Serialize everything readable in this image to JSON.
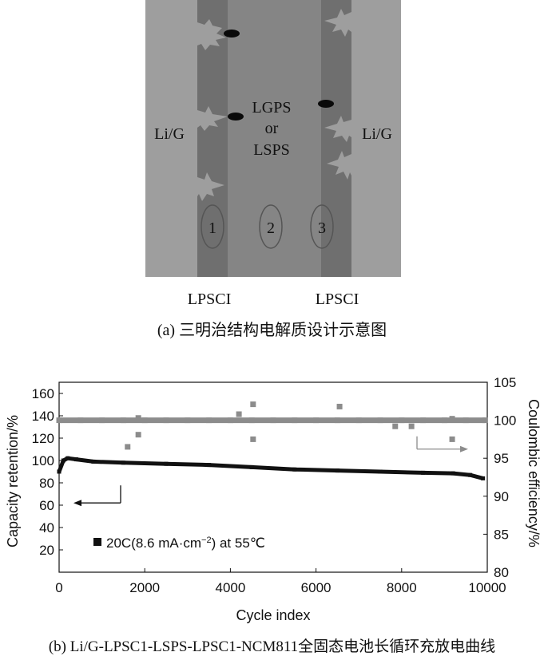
{
  "diagram_a": {
    "left_region_label": "Li/G",
    "right_region_label": "Li/G",
    "center_label": [
      "LGPS",
      "or",
      "LSPS"
    ],
    "bottom_labels": [
      "LPSCI",
      "LPSCI"
    ],
    "interface_markers": [
      "1",
      "2",
      "3"
    ],
    "caption": "(a) 三明治结构电解质设计示意图",
    "colors": {
      "outer": "#9e9e9e",
      "lpsci": "#6f6f6f",
      "center": "#858585"
    }
  },
  "chart_data": {
    "type": "scatter",
    "caption": "(b) Li/G-LPSC1-LSPS-LPSC1-NCM811全固态电池长循环充放电曲线",
    "xlabel": "Cycle index",
    "ylabel_left": "Capacity retention/%",
    "ylabel_right": "Coulombic efficiency/%",
    "xlim": [
      0,
      10000
    ],
    "ylim_left": [
      0,
      170
    ],
    "ylim_right": [
      80,
      105
    ],
    "x_ticks": [
      "0",
      "2000",
      "4000",
      "6000",
      "8000",
      "10000"
    ],
    "y_left_ticks": [
      "20",
      "40",
      "60",
      "80",
      "100",
      "120",
      "140",
      "160"
    ],
    "y_right_ticks": [
      "80",
      "85",
      "90",
      "95",
      "100",
      "105"
    ],
    "legend": "20C(8.6 mA·cm⁻²) at 55℃",
    "legend_parts": {
      "a": "20C(8.6 mA",
      "dot": "·",
      "b": "cm",
      "sup": "−2",
      "c": ") at 55℃"
    },
    "grid": false,
    "colors": {
      "capacity": "#111111",
      "efficiency": "#8c8c8c",
      "left_arrow": "#111111",
      "right_arrow": "#8c8c8c"
    },
    "series": [
      {
        "axis": "left",
        "values": [
          [
            0,
            90
          ],
          [
            100,
            100
          ],
          [
            200,
            102
          ],
          [
            400,
            101
          ],
          [
            800,
            99
          ],
          [
            1500,
            98
          ],
          [
            2500,
            97
          ],
          [
            3500,
            96
          ],
          [
            4500,
            94
          ],
          [
            5500,
            92
          ],
          [
            6500,
            91
          ],
          [
            7500,
            90
          ],
          [
            8500,
            89
          ],
          [
            9200,
            88.5
          ],
          [
            9600,
            87
          ],
          [
            9900,
            84
          ]
        ]
      },
      {
        "axis": "right",
        "values": [
          [
            0,
            100
          ],
          [
            500,
            100
          ],
          [
            1000,
            100
          ],
          [
            1500,
            100
          ],
          [
            2000,
            100
          ],
          [
            2500,
            100
          ],
          [
            3000,
            100
          ],
          [
            3500,
            100
          ],
          [
            4000,
            100
          ],
          [
            4500,
            100
          ],
          [
            5000,
            100
          ],
          [
            5500,
            100
          ],
          [
            6000,
            100
          ],
          [
            6500,
            100
          ],
          [
            7000,
            100
          ],
          [
            7500,
            100
          ],
          [
            8000,
            100
          ],
          [
            8500,
            100
          ],
          [
            9000,
            100
          ],
          [
            9500,
            100
          ],
          [
            9950,
            100
          ]
        ],
        "outliers": [
          [
            1600,
            96.5
          ],
          [
            1850,
            100.3
          ],
          [
            1850,
            98.1
          ],
          [
            4200,
            100.8
          ],
          [
            4530,
            102.1
          ],
          [
            4530,
            97.5
          ],
          [
            6550,
            101.8
          ],
          [
            7850,
            99.2
          ],
          [
            8230,
            99.2
          ],
          [
            9180,
            100.2
          ],
          [
            9180,
            97.5
          ]
        ]
      }
    ]
  }
}
